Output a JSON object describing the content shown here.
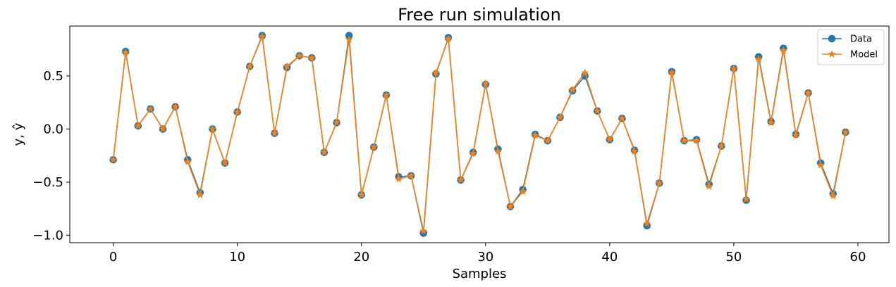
{
  "chart_data": {
    "type": "line",
    "title": "Free run simulation",
    "xlabel": "Samples",
    "ylabel": "y, ŷ",
    "xlim": [
      -3.5,
      62.5
    ],
    "ylim": [
      -1.07,
      0.97
    ],
    "xticks": [
      0,
      10,
      20,
      30,
      40,
      50,
      60
    ],
    "yticks": [
      -1.0,
      -0.5,
      0.0,
      0.5
    ],
    "ytick_labels": [
      "−1.0",
      "−0.5",
      "0.0",
      "0.5"
    ],
    "grid": false,
    "legend_position": "top-right",
    "x": [
      0,
      1,
      2,
      3,
      4,
      5,
      6,
      7,
      8,
      9,
      10,
      11,
      12,
      13,
      14,
      15,
      16,
      17,
      18,
      19,
      20,
      21,
      22,
      23,
      24,
      25,
      26,
      27,
      28,
      29,
      30,
      31,
      32,
      33,
      34,
      35,
      36,
      37,
      38,
      39,
      40,
      41,
      42,
      43,
      44,
      45,
      46,
      47,
      48,
      49,
      50,
      51,
      52,
      53,
      54,
      55,
      56,
      57,
      58,
      59
    ],
    "series": [
      {
        "name": "Data",
        "color": "#1f77b4",
        "marker": "circle",
        "values": [
          -0.29,
          0.73,
          0.03,
          0.19,
          0.0,
          0.21,
          -0.29,
          -0.6,
          0.0,
          -0.32,
          0.16,
          0.59,
          0.88,
          -0.04,
          0.58,
          0.69,
          0.67,
          -0.22,
          0.06,
          0.88,
          -0.62,
          -0.17,
          0.32,
          -0.45,
          -0.44,
          -0.98,
          0.52,
          0.86,
          -0.48,
          -0.22,
          0.42,
          -0.19,
          -0.73,
          -0.57,
          -0.05,
          -0.11,
          0.11,
          0.36,
          0.5,
          0.17,
          -0.1,
          0.1,
          -0.2,
          -0.91,
          -0.51,
          0.54,
          -0.11,
          -0.1,
          -0.52,
          -0.16,
          0.57,
          -0.67,
          0.68,
          0.07,
          0.76,
          -0.05,
          0.34,
          -0.32,
          -0.61,
          -0.03
        ]
      },
      {
        "name": "Model",
        "color": "#ff7f0e",
        "marker": "star",
        "values": [
          -0.29,
          0.72,
          0.03,
          0.19,
          0.0,
          0.21,
          -0.31,
          -0.62,
          0.0,
          -0.32,
          0.16,
          0.59,
          0.87,
          -0.04,
          0.59,
          0.69,
          0.67,
          -0.22,
          0.06,
          0.84,
          -0.62,
          -0.17,
          0.32,
          -0.47,
          -0.44,
          -0.96,
          0.53,
          0.85,
          -0.48,
          -0.23,
          0.43,
          -0.21,
          -0.73,
          -0.59,
          -0.06,
          -0.11,
          0.11,
          0.37,
          0.53,
          0.17,
          -0.1,
          0.1,
          -0.21,
          -0.89,
          -0.51,
          0.53,
          -0.11,
          -0.11,
          -0.54,
          -0.16,
          0.57,
          -0.66,
          0.66,
          0.06,
          0.74,
          -0.06,
          0.34,
          -0.34,
          -0.63,
          -0.03
        ]
      }
    ]
  }
}
